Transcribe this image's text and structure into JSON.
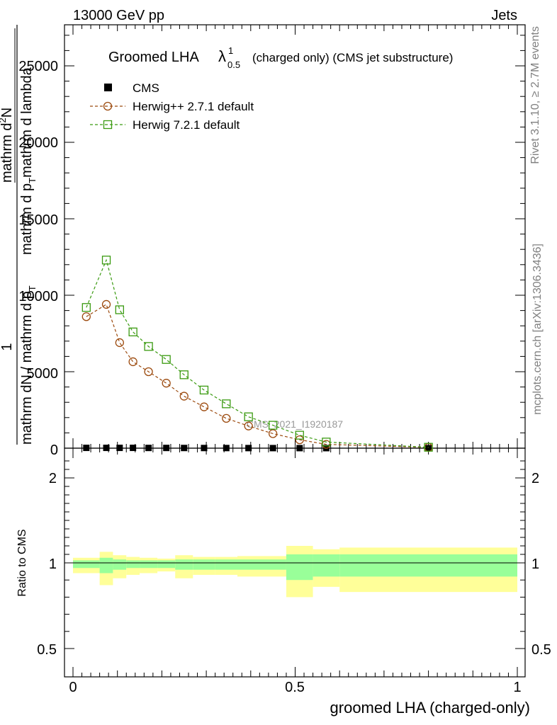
{
  "header": {
    "left": "13000 GeV pp",
    "right": "Jets"
  },
  "title": {
    "main": "Groomed LHA",
    "lambda": "λ",
    "sup": "1",
    "sub": "0.5",
    "rest": "(charged only) (CMS jet substructure)"
  },
  "side_labels": {
    "rivet": "Rivet 3.1.10, ≥ 2.7M events",
    "mcplots": "mcplots.cern.ch [arXiv:1306.3436]"
  },
  "watermark": "CMS_2021_I1920187",
  "ylabel_main": {
    "prefix": "1",
    "denominator": "mathrm dN / mathrm d p",
    "denominator_sub": "T",
    "numerator": "mathrm d",
    "numerator_sup": "2",
    "numerator_rest": "N",
    "numerator_den": "mathrm d p",
    "numerator_den_sub": "T",
    "numerator_den_rest": "mathrm d lambda"
  },
  "ylabel_ratio": "Ratio to CMS",
  "xlabel": "groomed LHA (charged-only)",
  "colors": {
    "herwigpp": "#9c4a0e",
    "herwig7": "#3a9a10",
    "band_inner": "#99ff99",
    "band_outer": "#ffff99",
    "data": "#000000"
  },
  "chart_data": {
    "type": "line",
    "xlim": [
      -0.02,
      1.02
    ],
    "ylim_main": [
      0,
      27500
    ],
    "ylim_ratio": [
      0.35,
      2.35
    ],
    "x_ticks": [
      "0",
      "0.5",
      "1"
    ],
    "y_ticks_main": [
      "0",
      "5000",
      "10000",
      "15000",
      "20000",
      "25000"
    ],
    "y_ticks_ratio": [
      "0.5",
      "1",
      "2"
    ],
    "legend": [
      {
        "name": "CMS",
        "marker": "square-filled"
      },
      {
        "name": "Herwig++ 2.7.1 default",
        "marker": "circle-open"
      },
      {
        "name": "Herwig 7.2.1 default",
        "marker": "square-open"
      }
    ],
    "x": [
      0.03,
      0.075,
      0.105,
      0.135,
      0.17,
      0.21,
      0.25,
      0.295,
      0.345,
      0.395,
      0.45,
      0.51,
      0.57,
      0.8
    ],
    "series": [
      {
        "name": "CMS",
        "values": [
          20,
          20,
          20,
          20,
          15,
          15,
          12,
          10,
          8,
          6,
          4,
          3,
          2,
          1
        ]
      },
      {
        "name": "Herwig++ 2.7.1 default",
        "values": [
          8600,
          9400,
          6900,
          5650,
          5000,
          4250,
          3400,
          2700,
          1950,
          1450,
          950,
          550,
          250,
          50
        ]
      },
      {
        "name": "Herwig 7.2.1 default",
        "values": [
          9200,
          12300,
          9050,
          7600,
          6650,
          5800,
          4800,
          3800,
          2900,
          2050,
          1500,
          850,
          400,
          60
        ]
      }
    ],
    "ratio_bands": [
      {
        "x0": 0.0,
        "x1": 0.06,
        "in_lo": 0.97,
        "in_hi": 1.03,
        "out_lo": 0.94,
        "out_hi": 1.06
      },
      {
        "x0": 0.06,
        "x1": 0.09,
        "in_lo": 0.94,
        "in_hi": 1.06,
        "out_lo": 0.87,
        "out_hi": 1.13
      },
      {
        "x0": 0.09,
        "x1": 0.12,
        "in_lo": 0.96,
        "in_hi": 1.04,
        "out_lo": 0.91,
        "out_hi": 1.09
      },
      {
        "x0": 0.12,
        "x1": 0.15,
        "in_lo": 0.97,
        "in_hi": 1.03,
        "out_lo": 0.93,
        "out_hi": 1.07
      },
      {
        "x0": 0.15,
        "x1": 0.19,
        "in_lo": 0.97,
        "in_hi": 1.03,
        "out_lo": 0.94,
        "out_hi": 1.06
      },
      {
        "x0": 0.19,
        "x1": 0.23,
        "in_lo": 0.97,
        "in_hi": 1.03,
        "out_lo": 0.95,
        "out_hi": 1.05
      },
      {
        "x0": 0.23,
        "x1": 0.27,
        "in_lo": 0.96,
        "in_hi": 1.04,
        "out_lo": 0.91,
        "out_hi": 1.09
      },
      {
        "x0": 0.27,
        "x1": 0.32,
        "in_lo": 0.96,
        "in_hi": 1.04,
        "out_lo": 0.93,
        "out_hi": 1.07
      },
      {
        "x0": 0.32,
        "x1": 0.37,
        "in_lo": 0.96,
        "in_hi": 1.04,
        "out_lo": 0.93,
        "out_hi": 1.07
      },
      {
        "x0": 0.37,
        "x1": 0.48,
        "in_lo": 0.96,
        "in_hi": 1.04,
        "out_lo": 0.92,
        "out_hi": 1.08
      },
      {
        "x0": 0.48,
        "x1": 0.54,
        "in_lo": 0.9,
        "in_hi": 1.1,
        "out_lo": 0.8,
        "out_hi": 1.2
      },
      {
        "x0": 0.54,
        "x1": 0.6,
        "in_lo": 0.92,
        "in_hi": 1.1,
        "out_lo": 0.86,
        "out_hi": 1.16
      },
      {
        "x0": 0.6,
        "x1": 1.0,
        "in_lo": 0.92,
        "in_hi": 1.1,
        "out_lo": 0.83,
        "out_hi": 1.18
      }
    ]
  }
}
